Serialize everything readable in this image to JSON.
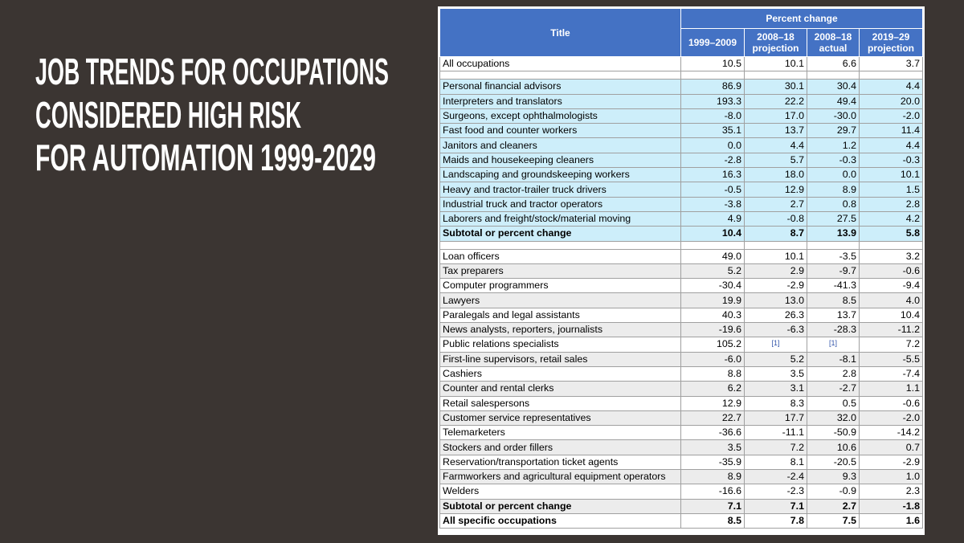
{
  "header": {
    "title_lines": [
      "JOB TRENDS FOR OCCUPATIONS",
      "CONSIDERED HIGH RISK",
      "FOR AUTOMATION 1999-2029"
    ]
  },
  "table": {
    "title_header": "Title",
    "group_header": "Percent change",
    "columns": [
      [
        "1999–2009"
      ],
      [
        "2008–18",
        "projection"
      ],
      [
        "2008–18",
        "actual"
      ],
      [
        "2019–29",
        "projection"
      ]
    ],
    "sections": [
      {
        "shade": "#ffffff",
        "rows": [
          {
            "label": "All occupations",
            "values": [
              "10.5",
              "10.1",
              "6.6",
              "3.7"
            ]
          }
        ]
      },
      {
        "shade": "#cdeefa",
        "rows": [
          {
            "label": "Personal financial advisors",
            "values": [
              "86.9",
              "30.1",
              "30.4",
              "4.4"
            ]
          },
          {
            "label": "Interpreters and translators",
            "values": [
              "193.3",
              "22.2",
              "49.4",
              "20.0"
            ]
          },
          {
            "label": "Surgeons, except ophthalmologists",
            "values": [
              "-8.0",
              "17.0",
              "-30.0",
              "-2.0"
            ]
          },
          {
            "label": "Fast food and counter workers",
            "values": [
              "35.1",
              "13.7",
              "29.7",
              "11.4"
            ]
          },
          {
            "label": "Janitors and cleaners",
            "values": [
              "0.0",
              "4.4",
              "1.2",
              "4.4"
            ]
          },
          {
            "label": "Maids and housekeeping cleaners",
            "values": [
              "-2.8",
              "5.7",
              "-0.3",
              "-0.3"
            ]
          },
          {
            "label": "Landscaping and groundskeeping workers",
            "values": [
              "16.3",
              "18.0",
              "0.0",
              "10.1"
            ]
          },
          {
            "label": "Heavy and tractor-trailer truck drivers",
            "values": [
              "-0.5",
              "12.9",
              "8.9",
              "1.5"
            ]
          },
          {
            "label": "Industrial truck and tractor operators",
            "values": [
              "-3.8",
              "2.7",
              "0.8",
              "2.8"
            ]
          },
          {
            "label": "Laborers and freight/stock/material moving",
            "values": [
              "4.9",
              "-0.8",
              "27.5",
              "4.2"
            ]
          },
          {
            "label": "Subtotal or percent change",
            "values": [
              "10.4",
              "8.7",
              "13.9",
              "5.8"
            ],
            "bold": true
          }
        ]
      },
      {
        "shade": "alternate",
        "rows": [
          {
            "label": "Loan officers",
            "values": [
              "49.0",
              "10.1",
              "-3.5",
              "3.2"
            ]
          },
          {
            "label": "Tax preparers",
            "values": [
              "5.2",
              "2.9",
              "-9.7",
              "-0.6"
            ]
          },
          {
            "label": "Computer programmers",
            "values": [
              "-30.4",
              "-2.9",
              "-41.3",
              "-9.4"
            ]
          },
          {
            "label": "Lawyers",
            "values": [
              "19.9",
              "13.0",
              "8.5",
              "4.0"
            ]
          },
          {
            "label": "Paralegals and legal assistants",
            "values": [
              "40.3",
              "26.3",
              "13.7",
              "10.4"
            ]
          },
          {
            "label": "News analysts, reporters, journalists",
            "values": [
              "-19.6",
              "-6.3",
              "-28.3",
              "-11.2"
            ]
          },
          {
            "label": "Public relations specialists",
            "values": [
              "105.2",
              "[1]",
              "[1]",
              "7.2"
            ]
          },
          {
            "label": "First-line supervisors, retail sales",
            "values": [
              "-6.0",
              "5.2",
              "-8.1",
              "-5.5"
            ]
          },
          {
            "label": "Cashiers",
            "values": [
              "8.8",
              "3.5",
              "2.8",
              "-7.4"
            ]
          },
          {
            "label": "Counter and rental clerks",
            "values": [
              "6.2",
              "3.1",
              "-2.7",
              "1.1"
            ]
          },
          {
            "label": "Retail salespersons",
            "values": [
              "12.9",
              "8.3",
              "0.5",
              "-0.6"
            ]
          },
          {
            "label": "Customer service representatives",
            "values": [
              "22.7",
              "17.7",
              "32.0",
              "-2.0"
            ]
          },
          {
            "label": "Telemarketers",
            "values": [
              "-36.6",
              "-11.1",
              "-50.9",
              "-14.2"
            ]
          },
          {
            "label": "Stockers and order fillers",
            "values": [
              "3.5",
              "7.2",
              "10.6",
              "0.7"
            ]
          },
          {
            "label": "Reservation/transportation ticket agents",
            "values": [
              "-35.9",
              "8.1",
              "-20.5",
              "-2.9"
            ]
          },
          {
            "label": "Farmworkers and agricultural equipment operators",
            "values": [
              "8.9",
              "-2.4",
              "9.3",
              "1.0"
            ]
          },
          {
            "label": "Welders",
            "values": [
              "-16.6",
              "-2.3",
              "-0.9",
              "2.3"
            ]
          },
          {
            "label": "Subtotal or percent change",
            "values": [
              "7.1",
              "7.1",
              "2.7",
              "-1.8"
            ],
            "bold": true
          },
          {
            "label": "All specific occupations",
            "values": [
              "8.5",
              "7.8",
              "7.5",
              "1.6"
            ],
            "bold": true
          }
        ]
      }
    ]
  }
}
